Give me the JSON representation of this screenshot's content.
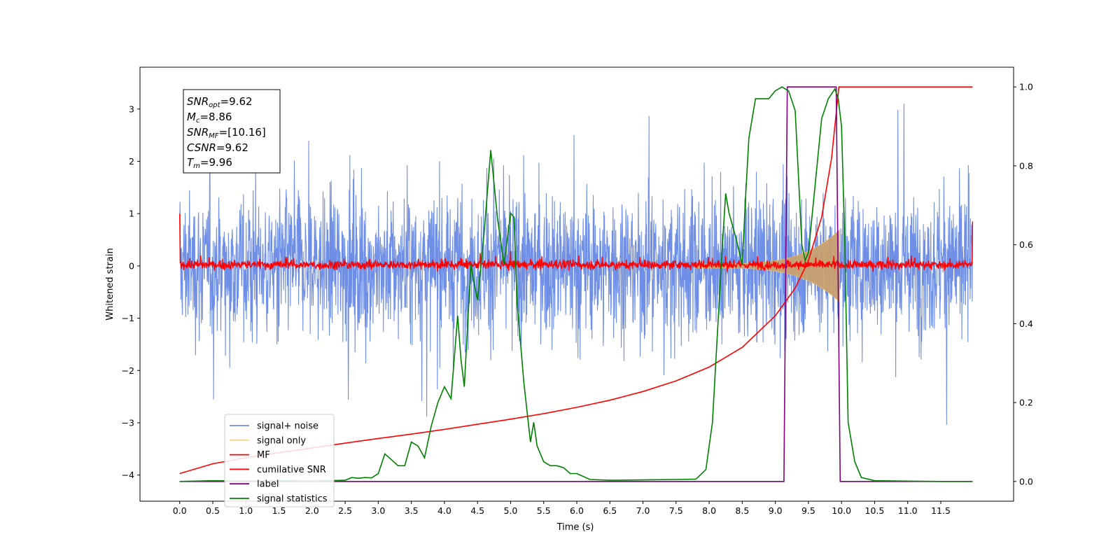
{
  "chart_data": {
    "type": "line",
    "xlabel": "Time (s)",
    "ylabel": "Whitened strain",
    "xlim": [
      -0.6,
      12.6
    ],
    "ylim_left": [
      -4.5,
      3.8
    ],
    "ylim_right": [
      -0.05,
      1.05
    ],
    "x_ticks": [
      "0.0",
      "0.5",
      "1.0",
      "1.5",
      "2.0",
      "2.5",
      "3.0",
      "3.5",
      "4.0",
      "4.5",
      "5.0",
      "5.5",
      "6.0",
      "6.5",
      "7.0",
      "7.5",
      "8.0",
      "8.5",
      "9.0",
      "9.5",
      "10.0",
      "10.5",
      "11.0",
      "11.5"
    ],
    "y_ticks_left": [
      "3",
      "2",
      "1",
      "0",
      "−1",
      "−2",
      "−3",
      "−4"
    ],
    "y_ticks_right": [
      "1.0",
      "0.8",
      "0.6",
      "0.4",
      "0.2",
      "0.0"
    ],
    "grid": false,
    "legend_position": "lower-left",
    "annotation": {
      "snr_opt": {
        "var": "SNR",
        "sub": "opt",
        "value": "=9.62"
      },
      "mc": {
        "var": "M",
        "sub": "c",
        "value": "=8.86"
      },
      "snr_mf": {
        "var": "SNR",
        "sub": "MF",
        "value": "=[10.16]"
      },
      "csnr": {
        "var": "CSNR",
        "sub": "",
        "value": "=9.62"
      },
      "tm": {
        "var": "T",
        "sub": "m",
        "value": "=9.96"
      }
    },
    "series": [
      {
        "name": "signal+ noise",
        "color": "#6f8fe6",
        "axis": "left",
        "kind": "noise",
        "x_range": [
          0,
          11.98
        ],
        "amplitude_range": [
          -3.3,
          3.4
        ]
      },
      {
        "name": "signal only",
        "color": "#f2c45a",
        "axis": "left",
        "kind": "chirp",
        "x_range": [
          7.8,
          9.97
        ],
        "peak_amplitude": 0.65
      },
      {
        "name": "MF",
        "color": "#ff0000",
        "axis": "left",
        "kind": "noise",
        "x_range": [
          0,
          11.98
        ],
        "amplitude_range": [
          -0.15,
          0.25
        ],
        "edge_values": [
          1.0,
          0.85
        ]
      },
      {
        "name": "cumilative SNR",
        "color": "#ff0000",
        "axis": "right",
        "x": [
          0,
          0.5,
          1,
          1.5,
          2,
          2.5,
          3,
          3.5,
          4,
          4.5,
          5,
          5.5,
          6,
          6.5,
          7,
          7.5,
          8,
          8.5,
          9,
          9.3,
          9.5,
          9.7,
          9.85,
          9.96,
          10.5,
          11,
          11.5,
          11.98
        ],
        "y": [
          0.02,
          0.045,
          0.06,
          0.073,
          0.085,
          0.097,
          0.109,
          0.12,
          0.132,
          0.145,
          0.158,
          0.172,
          0.188,
          0.206,
          0.228,
          0.255,
          0.29,
          0.34,
          0.42,
          0.49,
          0.56,
          0.67,
          0.82,
          1.0,
          1.0,
          1.0,
          1.0,
          1.0
        ]
      },
      {
        "name": "label",
        "color": "#800080",
        "axis": "right",
        "x": [
          0,
          9.13,
          9.18,
          9.92,
          9.98,
          11.98
        ],
        "y": [
          0,
          0,
          1,
          1,
          0,
          0
        ]
      },
      {
        "name": "signal statistics",
        "color": "#008000",
        "axis": "right",
        "x": [
          0,
          0.5,
          1,
          1.5,
          2,
          2.5,
          2.6,
          2.7,
          2.8,
          2.9,
          3.0,
          3.1,
          3.2,
          3.3,
          3.4,
          3.5,
          3.6,
          3.7,
          3.8,
          3.9,
          4.0,
          4.1,
          4.2,
          4.25,
          4.3,
          4.4,
          4.45,
          4.5,
          4.6,
          4.7,
          4.8,
          4.9,
          5.0,
          5.05,
          5.1,
          5.2,
          5.3,
          5.35,
          5.4,
          5.5,
          5.6,
          5.7,
          5.8,
          5.9,
          6.0,
          6.2,
          6.5,
          7.0,
          7.5,
          7.8,
          7.95,
          8.05,
          8.1,
          8.2,
          8.25,
          8.3,
          8.4,
          8.5,
          8.55,
          8.6,
          8.7,
          8.8,
          8.9,
          9.0,
          9.1,
          9.2,
          9.3,
          9.4,
          9.45,
          9.5,
          9.6,
          9.7,
          9.8,
          9.9,
          9.95,
          10.0,
          10.05,
          10.1,
          10.2,
          10.3,
          10.5,
          11,
          11.5,
          11.98
        ],
        "y": [
          0.0,
          0.002,
          0.001,
          0.002,
          0.001,
          0.003,
          0.01,
          0.008,
          0.01,
          0.009,
          0.02,
          0.07,
          0.055,
          0.04,
          0.04,
          0.1,
          0.09,
          0.06,
          0.14,
          0.2,
          0.24,
          0.21,
          0.42,
          0.31,
          0.24,
          0.55,
          0.5,
          0.46,
          0.63,
          0.84,
          0.67,
          0.55,
          0.68,
          0.67,
          0.45,
          0.25,
          0.1,
          0.15,
          0.09,
          0.05,
          0.04,
          0.04,
          0.035,
          0.02,
          0.02,
          0.005,
          0.003,
          0.004,
          0.005,
          0.006,
          0.03,
          0.15,
          0.3,
          0.6,
          0.73,
          0.68,
          0.62,
          0.55,
          0.72,
          0.87,
          0.97,
          0.97,
          0.97,
          0.99,
          1.0,
          0.99,
          0.94,
          0.6,
          0.56,
          0.58,
          0.75,
          0.92,
          0.97,
          0.995,
          0.97,
          0.9,
          0.6,
          0.15,
          0.05,
          0.01,
          0.002,
          0.001,
          0.0,
          0.0
        ]
      }
    ]
  }
}
